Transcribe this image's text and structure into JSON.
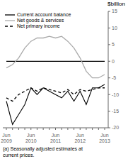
{
  "chart_data": {
    "type": "line",
    "ylabel": "$billion",
    "categories": [
      "Jun\n2009",
      null,
      null,
      null,
      "Jun\n2010",
      null,
      null,
      null,
      "Jun\n2011",
      null,
      null,
      null,
      "Jun\n2012",
      null,
      null,
      null,
      "Jun\n2013"
    ],
    "ylim": [
      -20,
      15
    ],
    "yticks": [
      -20,
      -15,
      -10,
      -5,
      0,
      5,
      10,
      15
    ],
    "legend": "upper left",
    "annotations": [
      "(a) Seasonally adjusted estimates at\ncurrent prices."
    ],
    "series": [
      {
        "name": "Current account balance",
        "color": "#000000",
        "line_style": "solid",
        "x": [
          "Jun\n2009",
          "Jun\n2013"
        ],
        "values": [
          0,
          0
        ]
      },
      {
        "name": "Net goods & services",
        "color": "#aaaaaa",
        "line_style": "solid",
        "values": [
          -2,
          -1,
          1,
          4,
          6,
          7,
          7,
          7.5,
          7,
          7.5,
          6,
          4,
          1,
          -3,
          -5,
          -5,
          -4
        ]
      },
      {
        "name": "Net primary income",
        "color": "#000000",
        "line_style": "dashed",
        "values": [
          -11,
          -12,
          -10,
          -9,
          -8,
          -9,
          -8,
          -8.5,
          -9,
          -9.5,
          -8.5,
          -10,
          -8.5,
          -9,
          -8.5,
          -8,
          -8
        ]
      },
      {
        "color": "#000000",
        "line_style": "solid",
        "values": [
          -12,
          -19,
          -16,
          -13,
          -8,
          -10,
          -8,
          -9,
          -10,
          -11,
          -9,
          -12,
          -9,
          -13,
          -8,
          -8,
          -7
        ]
      }
    ]
  }
}
